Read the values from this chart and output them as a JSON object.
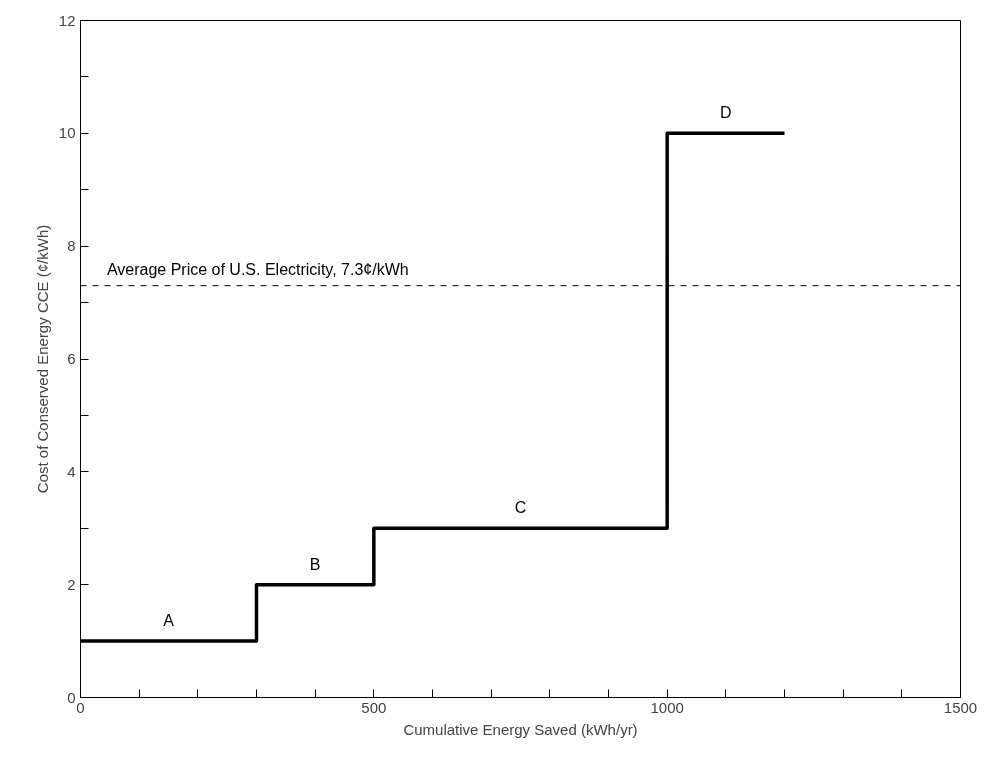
{
  "chart_data": {
    "type": "step",
    "xlabel": "Cumulative Energy Saved (kWh/yr)",
    "ylabel": "Cost of Conserved Energy CCE (¢/kWh)",
    "x": [
      0,
      300,
      500,
      1000,
      1200
    ],
    "series": [
      {
        "color": "#000000",
        "values": [
          1,
          2,
          3,
          10,
          10
        ]
      }
    ],
    "xlim": [
      0,
      1500
    ],
    "ylim": [
      0,
      12
    ],
    "xticks": [
      0,
      {
        "value": 100,
        "label": null
      },
      {
        "value": 200,
        "label": null
      },
      {
        "value": 300,
        "label": null
      },
      {
        "value": 400,
        "label": null
      },
      500,
      {
        "value": 600,
        "label": null
      },
      {
        "value": 700,
        "label": null
      },
      {
        "value": 800,
        "label": null
      },
      {
        "value": 900,
        "label": null
      },
      1000,
      {
        "value": 1100,
        "label": null
      },
      {
        "value": 1200,
        "label": null
      },
      {
        "value": 1300,
        "label": null
      },
      {
        "value": 1400,
        "label": null
      },
      1500
    ],
    "yticks": [
      0,
      {
        "value": 1,
        "label": null
      },
      2,
      {
        "value": 3,
        "label": null
      },
      4,
      {
        "value": 5,
        "label": null
      },
      6,
      {
        "value": 7,
        "label": null
      },
      8,
      {
        "value": 9,
        "label": null
      },
      10,
      {
        "value": 11,
        "label": null
      },
      12
    ],
    "ref_lines": [
      {
        "axis": "y",
        "value": 7.3,
        "label": "Average Price of U.S. Electricity, 7.3¢/kWh",
        "line_style": "dashed",
        "color": "#000000"
      }
    ],
    "annotations": [
      {
        "text": "A",
        "x": 150,
        "y": 1
      },
      {
        "text": "B",
        "x": 400,
        "y": 2
      },
      {
        "text": "C",
        "x": 750,
        "y": 3
      },
      {
        "text": "D",
        "x": 1100,
        "y": 10
      }
    ],
    "grid": false,
    "line_style": "solid",
    "marker": "none"
  }
}
